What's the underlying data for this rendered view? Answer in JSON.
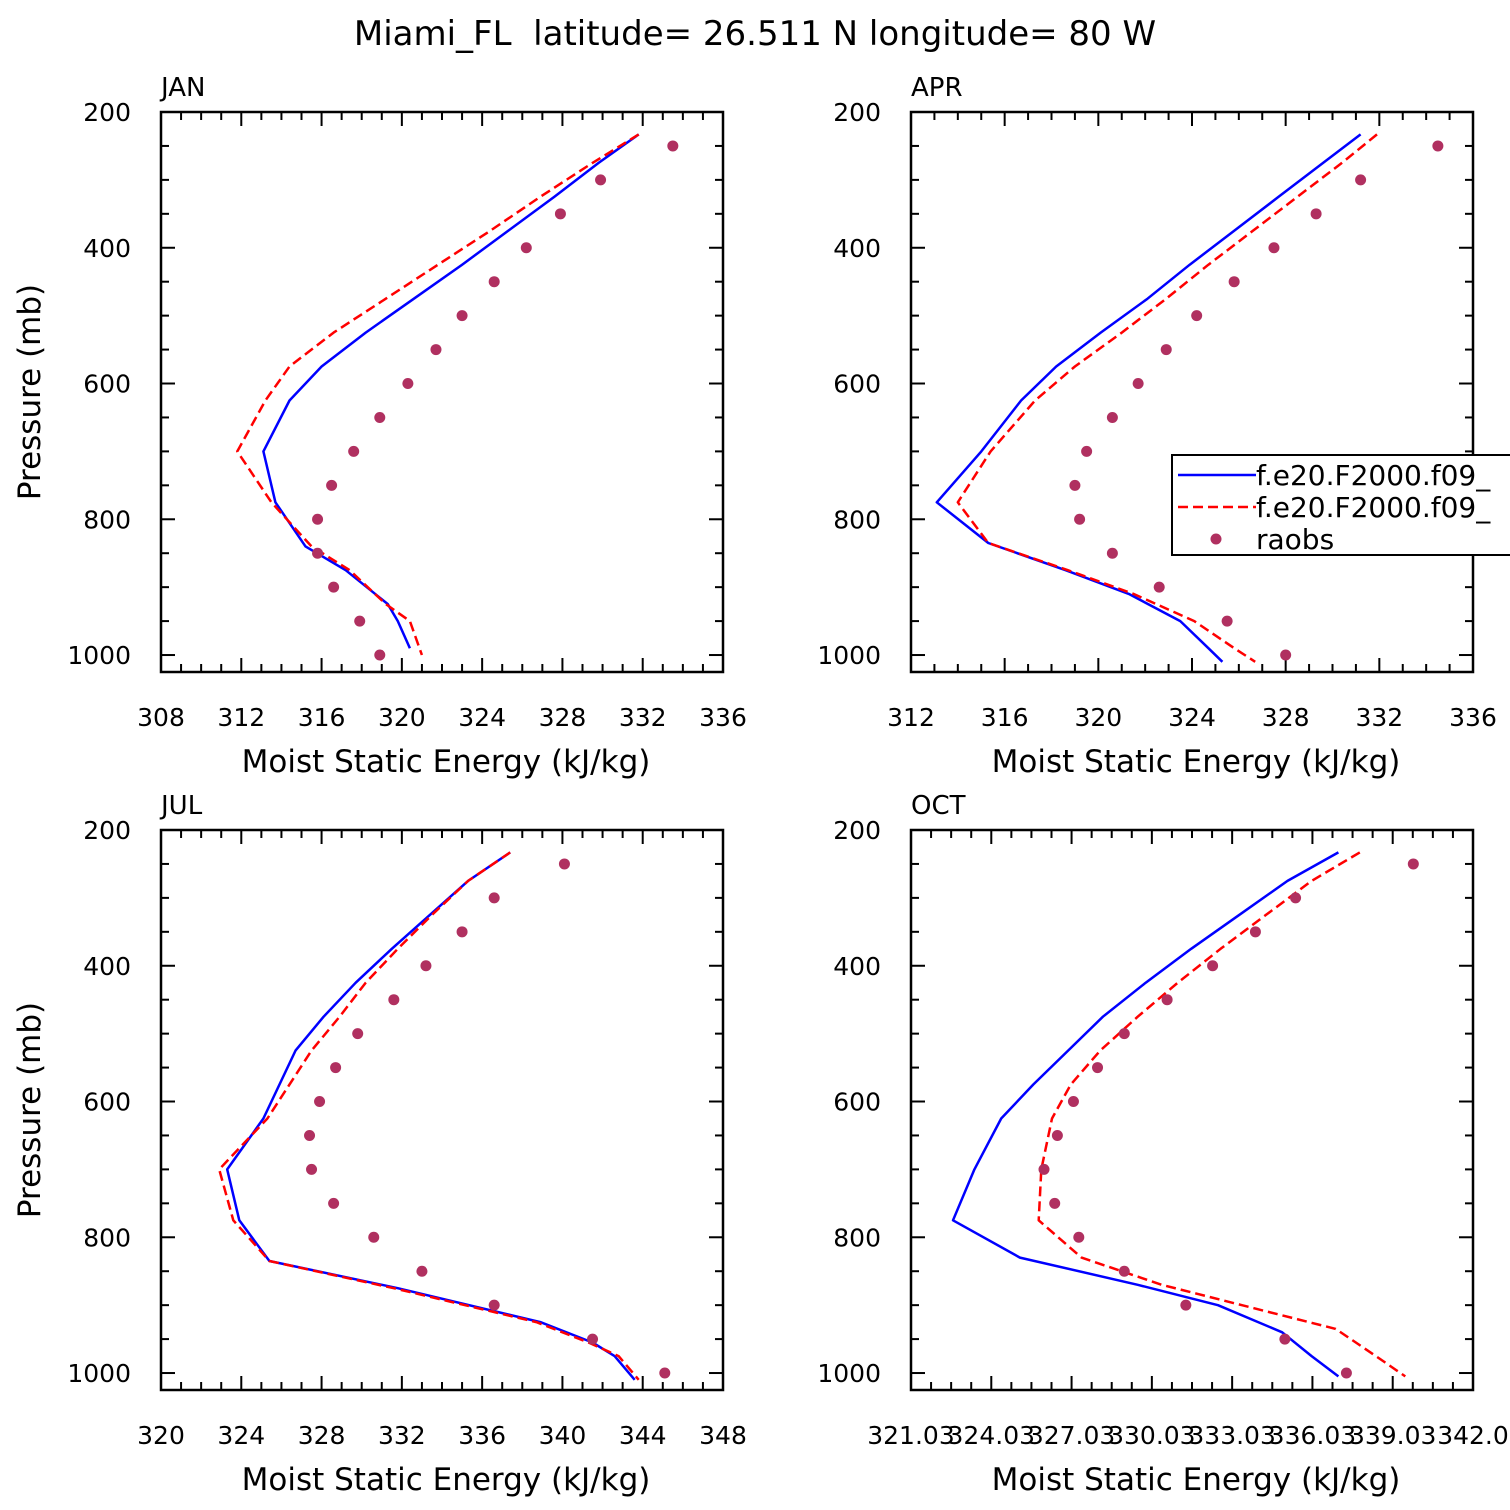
{
  "title": "Miami_FL  latitude= 26.511 N longitude= 80 W",
  "legend": {
    "entries": [
      {
        "label": "f.e20.F2000.f09_",
        "color": "#0000ff",
        "style": "solid"
      },
      {
        "label": "f.e20.F2000.f09_",
        "color": "#ff0000",
        "style": "dashed"
      },
      {
        "label": "raobs",
        "color": "#b03060",
        "style": "marker"
      }
    ],
    "placement": "right of APR panel (clipped)"
  },
  "chart_data": [
    {
      "type": "line",
      "title": "JAN",
      "xlabel": "Moist Static Energy (kJ/kg)",
      "ylabel": "Pressure (mb)",
      "xlim": [
        308,
        336
      ],
      "ylim": [
        1025,
        200
      ],
      "xticks": [
        308,
        312,
        316,
        320,
        324,
        328,
        332,
        336
      ],
      "xtick_labels": [
        "308",
        "312",
        "316",
        "320",
        "324",
        "328",
        "332",
        "336"
      ],
      "yticks": [
        200,
        400,
        600,
        800,
        1000
      ],
      "grid": false,
      "series": [
        {
          "color": "#0000ff",
          "style": "solid",
          "x": [
            331.8,
            329.8,
            327.6,
            325.3,
            323.0,
            320.6,
            318.2,
            316.0,
            314.4,
            313.1,
            313.7,
            315.2,
            317.2,
            319.3,
            319.8,
            320.4
          ],
          "y": [
            233,
            275,
            325,
            375,
            425,
            475,
            525,
            575,
            625,
            700,
            775,
            840,
            875,
            925,
            950,
            990
          ]
        },
        {
          "color": "#ff0000",
          "style": "dashed",
          "x": [
            331.8,
            329.5,
            326.9,
            324.4,
            321.8,
            319.2,
            316.6,
            314.4,
            313.2,
            311.8,
            313.5,
            315.5,
            317.4,
            319.2,
            320.4,
            321.0
          ],
          "y": [
            233,
            275,
            325,
            375,
            425,
            475,
            525,
            575,
            625,
            700,
            775,
            840,
            875,
            925,
            950,
            1000
          ]
        },
        {
          "color": "#b03060",
          "style": "marker",
          "x": [
            333.5,
            329.9,
            327.9,
            326.2,
            324.6,
            323.0,
            321.7,
            320.3,
            318.9,
            317.6,
            316.5,
            315.8,
            315.8,
            316.6,
            317.9,
            318.9
          ],
          "y": [
            250,
            300,
            350,
            400,
            450,
            500,
            550,
            600,
            650,
            700,
            750,
            800,
            850,
            900,
            950,
            1000
          ]
        }
      ]
    },
    {
      "type": "line",
      "title": "APR",
      "xlabel": "Moist Static Energy (kJ/kg)",
      "ylabel": "",
      "xlim": [
        312,
        336
      ],
      "ylim": [
        1025,
        200
      ],
      "xticks": [
        312,
        316,
        320,
        324,
        328,
        332,
        336
      ],
      "xtick_labels": [
        "312",
        "316",
        "320",
        "324",
        "328",
        "332",
        "336"
      ],
      "yticks": [
        200,
        400,
        600,
        800,
        1000
      ],
      "grid": false,
      "series": [
        {
          "color": "#0000ff",
          "style": "solid",
          "x": [
            331.2,
            329.6,
            327.7,
            325.8,
            323.9,
            322.1,
            320.1,
            318.2,
            316.7,
            315.0,
            313.1,
            315.3,
            318.6,
            321.3,
            323.5,
            324.7,
            325.3
          ],
          "y": [
            233,
            275,
            325,
            375,
            425,
            475,
            525,
            575,
            625,
            700,
            775,
            835,
            875,
            910,
            950,
            990,
            1010
          ]
        },
        {
          "color": "#ff0000",
          "style": "dashed",
          "x": [
            331.9,
            330.4,
            328.5,
            326.6,
            324.7,
            322.9,
            321.0,
            319.0,
            317.3,
            315.4,
            314.0,
            315.3,
            318.7,
            321.5,
            324.1,
            325.8,
            326.7
          ],
          "y": [
            233,
            275,
            325,
            375,
            425,
            475,
            525,
            575,
            625,
            700,
            775,
            835,
            875,
            910,
            950,
            990,
            1010
          ]
        },
        {
          "color": "#b03060",
          "style": "marker",
          "x": [
            334.5,
            331.2,
            329.3,
            327.5,
            325.8,
            324.2,
            322.9,
            321.7,
            320.6,
            319.5,
            319.0,
            319.2,
            320.6,
            322.6,
            325.5,
            328.0
          ],
          "y": [
            250,
            300,
            350,
            400,
            450,
            500,
            550,
            600,
            650,
            700,
            750,
            800,
            850,
            900,
            950,
            1000
          ]
        }
      ]
    },
    {
      "type": "line",
      "title": "JUL",
      "xlabel": "Moist Static Energy (kJ/kg)",
      "ylabel": "Pressure (mb)",
      "xlim": [
        320,
        348
      ],
      "ylim": [
        1025,
        200
      ],
      "xticks": [
        320,
        324,
        328,
        332,
        336,
        340,
        344,
        348
      ],
      "xtick_labels": [
        "320",
        "324",
        "328",
        "332",
        "336",
        "340",
        "344",
        "348"
      ],
      "yticks": [
        200,
        400,
        600,
        800,
        1000
      ],
      "grid": false,
      "series": [
        {
          "color": "#0000ff",
          "style": "solid",
          "x": [
            337.4,
            335.3,
            333.4,
            331.5,
            329.7,
            328.1,
            326.7,
            325.1,
            323.3,
            323.9,
            325.4,
            331.8,
            338.9,
            341.5,
            342.6,
            343.6
          ],
          "y": [
            233,
            275,
            325,
            375,
            425,
            475,
            525,
            625,
            700,
            775,
            835,
            875,
            925,
            955,
            975,
            1010
          ]
        },
        {
          "color": "#ff0000",
          "style": "dashed",
          "x": [
            337.4,
            335.3,
            333.5,
            331.8,
            330.2,
            328.9,
            327.5,
            325.3,
            322.9,
            323.6,
            325.4,
            331.6,
            338.7,
            341.3,
            342.8,
            343.8
          ],
          "y": [
            233,
            275,
            325,
            375,
            425,
            475,
            525,
            625,
            700,
            775,
            835,
            875,
            925,
            955,
            975,
            1010
          ]
        },
        {
          "color": "#b03060",
          "style": "marker",
          "x": [
            340.1,
            336.6,
            335.0,
            333.2,
            331.6,
            329.8,
            328.7,
            327.9,
            327.4,
            327.5,
            328.6,
            330.6,
            333.0,
            336.6,
            341.5,
            345.1
          ],
          "y": [
            250,
            300,
            350,
            400,
            450,
            500,
            550,
            600,
            650,
            700,
            750,
            800,
            850,
            900,
            950,
            1000
          ]
        }
      ]
    },
    {
      "type": "line",
      "title": "OCT",
      "xlabel": "Moist Static Energy (kJ/kg)",
      "ylabel": "",
      "xlim": [
        321.03,
        342.03
      ],
      "ylim": [
        1025,
        200
      ],
      "xticks": [
        321.03,
        324.03,
        327.03,
        330.03,
        333.03,
        336.03,
        339.03,
        342.03
      ],
      "xtick_labels": [
        "321.03",
        "324.03",
        "327.03",
        "330.03",
        "333.03",
        "336.03",
        "339.03",
        "342.0"
      ],
      "yticks": [
        200,
        400,
        600,
        800,
        1000
      ],
      "grid": false,
      "series": [
        {
          "color": "#0000ff",
          "style": "solid",
          "x": [
            337.0,
            335.1,
            333.3,
            331.5,
            329.8,
            328.2,
            326.9,
            325.6,
            324.4,
            323.4,
            322.6,
            325.1,
            329.5,
            332.5,
            334.9,
            336.0,
            337.0
          ],
          "y": [
            233,
            275,
            325,
            375,
            425,
            475,
            525,
            575,
            625,
            700,
            775,
            830,
            870,
            900,
            940,
            975,
            1005
          ]
        },
        {
          "color": "#ff0000",
          "style": "dashed",
          "x": [
            337.8,
            336.0,
            334.3,
            332.6,
            331.0,
            329.5,
            328.1,
            327.0,
            326.3,
            325.9,
            325.8,
            327.4,
            330.4,
            333.4,
            336.9,
            338.4,
            339.5
          ],
          "y": [
            233,
            275,
            325,
            375,
            425,
            475,
            525,
            575,
            625,
            700,
            775,
            830,
            870,
            900,
            935,
            975,
            1005
          ]
        },
        {
          "color": "#b03060",
          "style": "marker",
          "x": [
            339.8,
            335.4,
            333.9,
            332.3,
            330.6,
            329.0,
            328.0,
            327.1,
            326.5,
            326.0,
            326.4,
            327.3,
            329.0,
            331.3,
            335.0,
            337.3
          ],
          "y": [
            250,
            300,
            350,
            400,
            450,
            500,
            550,
            600,
            650,
            700,
            750,
            800,
            850,
            900,
            950,
            1000
          ]
        }
      ]
    }
  ]
}
